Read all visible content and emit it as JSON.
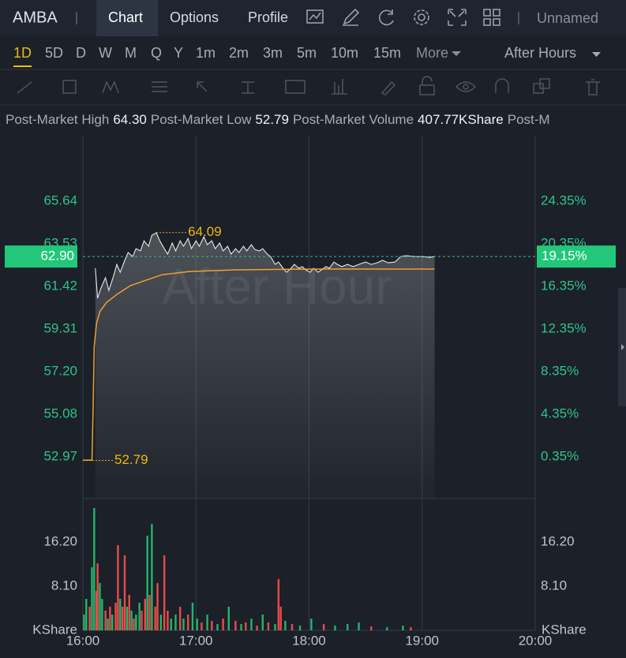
{
  "header": {
    "symbol": "AMBA",
    "tabs": [
      "Chart",
      "Options",
      "Profile"
    ],
    "layout_name": "Unnamed"
  },
  "intervals": [
    "1D",
    "5D",
    "D",
    "W",
    "M",
    "Q",
    "Y",
    "1m",
    "2m",
    "3m",
    "5m",
    "10m",
    "15m"
  ],
  "more": "More",
  "session": "After Hours",
  "stats": [
    {
      "label": "Post-Market High",
      "value": "64.30"
    },
    {
      "label": "Post-Market Low",
      "value": "52.79"
    },
    {
      "label": "Post-Market Volume",
      "value": "407.77KShare"
    },
    {
      "label": "Post-M",
      "value": ""
    }
  ],
  "chart_data": {
    "type": "line",
    "watermark": "After Hour",
    "grid": true,
    "xlim": [
      16,
      20
    ],
    "xticks": [
      {
        "value": 16,
        "label": "16:00"
      },
      {
        "value": 17,
        "label": "17:00"
      },
      {
        "value": 18,
        "label": "18:00"
      },
      {
        "value": 19,
        "label": "19:00"
      },
      {
        "value": 20,
        "label": "20:00"
      }
    ],
    "ylim": [
      50.9,
      68.89
    ],
    "yticks": [
      65.64,
      63.53,
      61.42,
      59.31,
      {
        "value": 57.2,
        "label": "57.20"
      },
      55.08,
      52.97
    ],
    "y2lim": [
      -3.58,
      30.5
    ],
    "y2ticks": [
      {
        "value": 24.35,
        "label": "24.35%"
      },
      {
        "value": 20.35,
        "label": "20.35%"
      },
      {
        "value": 16.35,
        "label": "16.35%"
      },
      {
        "value": 12.35,
        "label": "12.35%"
      },
      {
        "value": 8.35,
        "label": "8.35%"
      },
      {
        "value": 4.35,
        "label": "4.35%"
      },
      {
        "value": 0.35,
        "label": "0.35%"
      }
    ],
    "series": [
      {
        "color": "#e8e8e8",
        "x": [
          16.11,
          16.13,
          16.16,
          16.2,
          16.23,
          16.27,
          16.3,
          16.33,
          16.37,
          16.4,
          16.44,
          16.47,
          16.51,
          16.54,
          16.58,
          16.61,
          16.65,
          16.68,
          16.72,
          16.75,
          16.79,
          16.82,
          16.86,
          16.89,
          16.93,
          16.96,
          17,
          17.03,
          17.07,
          17.1,
          17.14,
          17.17,
          17.21,
          17.24,
          17.28,
          17.31,
          17.35,
          17.38,
          17.42,
          17.45,
          17.49,
          17.52,
          17.56,
          17.59,
          17.63,
          17.66,
          17.7,
          17.73,
          17.77,
          17.8,
          17.84,
          17.87,
          17.91,
          17.94,
          17.97,
          18.01,
          18.04,
          18.08,
          18.11,
          18.15,
          18.18,
          18.22,
          18.25,
          18.29,
          18.34,
          18.39,
          18.44,
          18.5,
          18.55,
          18.6,
          18.65,
          18.7,
          18.76,
          18.81,
          18.86,
          18.93,
          19,
          19.07,
          19.11
        ],
        "values": [
          62.32,
          60.83,
          61.34,
          61.85,
          61.22,
          61.92,
          62.51,
          62.12,
          62.71,
          63.1,
          62.9,
          63.29,
          63.18,
          63.68,
          63.41,
          63.96,
          64.08,
          63.68,
          63.29,
          63.02,
          63.57,
          63.18,
          63.68,
          63.41,
          63.8,
          63.29,
          63.68,
          63.41,
          63.88,
          63.49,
          63.68,
          63.29,
          63.57,
          63.18,
          63.41,
          63.02,
          63.29,
          63.1,
          63.41,
          63.18,
          63.49,
          63.25,
          63.18,
          63.29,
          63.02,
          62.9,
          62.51,
          62.63,
          62.32,
          62.12,
          62.32,
          62.51,
          62.32,
          62.4,
          62.24,
          62.12,
          62.32,
          62.12,
          62.24,
          62.4,
          62.32,
          62.63,
          62.51,
          62.4,
          62.51,
          62.4,
          62.51,
          62.63,
          62.51,
          62.59,
          62.71,
          62.59,
          62.63,
          62.9,
          62.94,
          62.9,
          62.9,
          62.86,
          62.9
        ]
      },
      {
        "color": "#f0a030",
        "x": [
          16,
          16.08,
          16.09,
          16.1,
          16.12,
          16.15,
          16.21,
          16.31,
          16.42,
          16.56,
          16.7,
          16.94,
          17.36,
          18.06,
          19.11
        ],
        "values": [
          52.81,
          52.81,
          55.28,
          58.4,
          59.58,
          60.17,
          60.63,
          61.06,
          61.46,
          61.73,
          62,
          62.16,
          62.24,
          62.28,
          62.28
        ]
      }
    ],
    "last_price": {
      "value": 62.9,
      "label": "62.90"
    },
    "last_change": {
      "value": 19.15,
      "label": "19.15%"
    },
    "high_label": {
      "x": 16.65,
      "value": 64.09,
      "label": "64.09"
    },
    "low_label": {
      "x": 16,
      "value": 52.79,
      "label": "52.79"
    },
    "volume": {
      "type": "bar",
      "unit": "KShare",
      "ylim": [
        0,
        23.7
      ],
      "yticks": [
        {
          "value": 16.2,
          "label": "16.20"
        },
        {
          "value": 8.1,
          "label": "8.10"
        }
      ],
      "x": [
        16.01,
        16.03,
        16.06,
        16.08,
        16.1,
        16.12,
        16.13,
        16.15,
        16.17,
        16.2,
        16.22,
        16.24,
        16.26,
        16.29,
        16.31,
        16.33,
        16.35,
        16.37,
        16.39,
        16.41,
        16.43,
        16.45,
        16.47,
        16.5,
        16.52,
        16.55,
        16.57,
        16.59,
        16.61,
        16.64,
        16.66,
        16.69,
        16.72,
        16.75,
        16.78,
        16.82,
        16.86,
        16.89,
        16.93,
        16.97,
        17.01,
        17.05,
        17.1,
        17.14,
        17.19,
        17.24,
        17.29,
        17.35,
        17.4,
        17.44,
        17.49,
        17.54,
        17.59,
        17.64,
        17.7,
        17.73,
        17.75,
        17.79,
        17.85,
        17.92,
        18.02,
        18.13,
        18.23,
        18.34,
        18.44,
        18.55,
        18.69,
        18.83,
        18.9
      ],
      "values": [
        2.89,
        5.78,
        4.34,
        11.57,
        22.41,
        7.23,
        12.29,
        8.68,
        5.78,
        3.62,
        2.17,
        4.34,
        2.89,
        5.06,
        15.62,
        5.78,
        4.34,
        13.74,
        4.34,
        6.51,
        3.62,
        2.17,
        2.89,
        5.06,
        3.62,
        5.78,
        17.35,
        6.51,
        19.52,
        4.34,
        8.68,
        2.89,
        13.74,
        3.62,
        2.17,
        2.89,
        4.34,
        2.17,
        2.89,
        5.06,
        2.17,
        1.45,
        2.89,
        1.74,
        1.16,
        2.17,
        4.34,
        1.74,
        1.16,
        1.45,
        2.17,
        0.87,
        2.89,
        1.45,
        1.16,
        9.4,
        4.34,
        1.74,
        1.16,
        0.87,
        2.17,
        1.16,
        0.87,
        1.16,
        1.45,
        0.72,
        0.58,
        0.87,
        0.58
      ],
      "colors": [
        "#26b36b",
        "#26b36b",
        "#e84b4b",
        "#26b36b",
        "#26b36b",
        "#e84b4b",
        "#e84b4b",
        "#26b36b",
        "#26b36b",
        "#e84b4b",
        "#26b36b",
        "#e84b4b",
        "#26b36b",
        "#e84b4b",
        "#e84b4b",
        "#26b36b",
        "#e84b4b",
        "#e84b4b",
        "#26b36b",
        "#e84b4b",
        "#26b36b",
        "#e84b4b",
        "#26b36b",
        "#26b36b",
        "#e84b4b",
        "#e84b4b",
        "#26b36b",
        "#e84b4b",
        "#26b36b",
        "#e84b4b",
        "#e84b4b",
        "#26b36b",
        "#e84b4b",
        "#e84b4b",
        "#26b36b",
        "#26b36b",
        "#e84b4b",
        "#26b36b",
        "#e84b4b",
        "#26b36b",
        "#26b36b",
        "#e84b4b",
        "#26b36b",
        "#e84b4b",
        "#26b36b",
        "#e84b4b",
        "#26b36b",
        "#e84b4b",
        "#26b36b",
        "#e84b4b",
        "#26b36b",
        "#e84b4b",
        "#26b36b",
        "#e84b4b",
        "#26b36b",
        "#e84b4b",
        "#e84b4b",
        "#26b36b",
        "#e84b4b",
        "#26b36b",
        "#26b36b",
        "#e84b4b",
        "#26b36b",
        "#26b36b",
        "#26b36b",
        "#e84b4b",
        "#26b36b",
        "#26b36b",
        "#e84b4b"
      ]
    }
  }
}
